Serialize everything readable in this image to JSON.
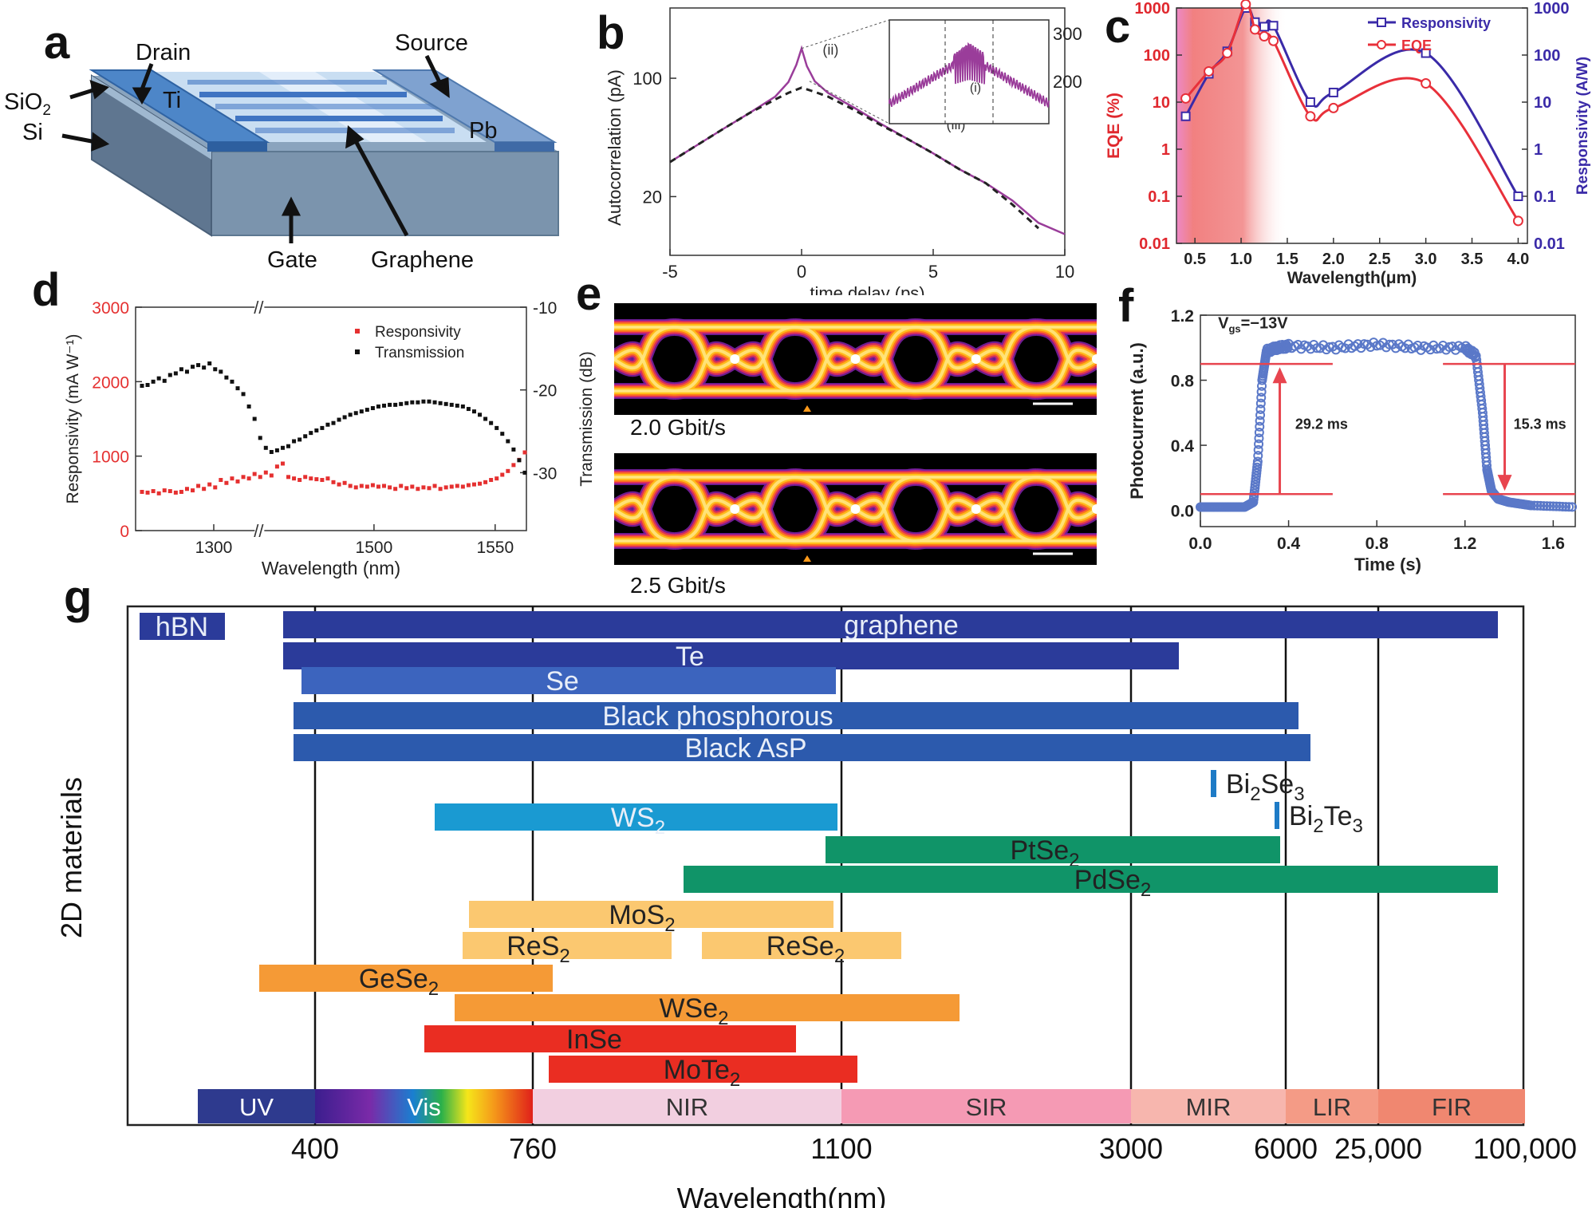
{
  "panel_labels": {
    "a": "a",
    "b": "b",
    "c": "c",
    "d": "d",
    "e": "e",
    "f": "f",
    "g": "g"
  },
  "panel_a": {
    "labels": {
      "drain": "Drain",
      "source": "Source",
      "sio2": "SiO",
      "sio2_sub": "2",
      "si": "Si",
      "ti": "Ti",
      "pb": "Pb",
      "gate": "Gate",
      "graphene": "Graphene"
    },
    "colors": {
      "substrate_top": "#8fa8c0",
      "substrate_front": "#7d95ad",
      "electrode": "#4f86c6",
      "channel": "#bcd6ee",
      "stripe": "#3d74c4"
    }
  },
  "chart_data": [
    {
      "id": "b",
      "type": "line",
      "title": "",
      "xlabel": "time delay (ps)",
      "ylabel": "Autocorrelation (pA)",
      "xlim": [
        -5,
        10
      ],
      "yscale": "log",
      "ylim": [
        9,
        260
      ],
      "xticks": [
        "-5",
        "0",
        "5",
        "10"
      ],
      "yticks": [
        {
          "v": 100,
          "t": "100"
        },
        {
          "v": 20,
          "t": "20"
        }
      ],
      "series": [
        {
          "name": "measured",
          "color": "#9a3d9a",
          "x": [
            -5,
            -4,
            -3,
            -2,
            -1,
            -0.5,
            -0.2,
            0,
            0.2,
            0.5,
            1,
            2,
            3,
            4,
            5,
            6,
            7,
            8,
            9,
            10
          ],
          "y": [
            32,
            40,
            50,
            62,
            78,
            95,
            120,
            150,
            118,
            96,
            82,
            67,
            54,
            44,
            36,
            29,
            24,
            19,
            14,
            12
          ]
        },
        {
          "name": "fit",
          "color": "#222222",
          "dashed": true,
          "x": [
            -5,
            -4,
            -3,
            -2,
            -1,
            -0.5,
            0,
            0.5,
            1,
            2,
            3,
            4,
            5,
            6,
            7,
            8,
            9
          ],
          "y": [
            32,
            40,
            50,
            62,
            75,
            82,
            88,
            83,
            78,
            65,
            53,
            44,
            36,
            29,
            24,
            18,
            13
          ]
        }
      ],
      "annotations": [
        "(ii)",
        "(iii)"
      ],
      "inset": {
        "right_axis_ticks": [
          "300",
          "200"
        ],
        "label": "(i)"
      }
    },
    {
      "id": "c",
      "type": "line",
      "xlabel": "Wavelength(μm)",
      "ylabel_left": "EQE (%)",
      "ylabel_right": "Responsivity (A/W)",
      "xlim": [
        0.3,
        4.1
      ],
      "yscale": "log",
      "ylim_left": [
        0.01,
        1000
      ],
      "ylim_right": [
        0.01,
        1000
      ],
      "xticks": [
        "0.5",
        "1.0",
        "1.5",
        "2.0",
        "2.5",
        "3.0",
        "3.5",
        "4.0"
      ],
      "yticks_left": [
        "0.01",
        "0.1",
        "1",
        "10",
        "100",
        "1000"
      ],
      "yticks_right": [
        "0.01",
        "0.1",
        "1",
        "10",
        "100",
        "1000"
      ],
      "series": [
        {
          "name": "Responsivity",
          "color": "#3a2aa8",
          "marker": "square",
          "x": [
            0.4,
            0.65,
            0.85,
            1.05,
            1.15,
            1.25,
            1.35,
            1.75,
            2.0,
            3.0,
            4.0
          ],
          "y": [
            5,
            40,
            120,
            1000,
            500,
            400,
            420,
            10,
            16,
            110,
            0.1
          ]
        },
        {
          "name": "EQE",
          "color": "#e8303a",
          "marker": "circle",
          "x": [
            0.4,
            0.65,
            0.85,
            1.05,
            1.15,
            1.25,
            1.35,
            1.75,
            2.0,
            3.0,
            4.0
          ],
          "y": [
            12,
            45,
            110,
            1200,
            350,
            250,
            200,
            5,
            7.5,
            25,
            0.03
          ]
        }
      ]
    },
    {
      "id": "d",
      "type": "scatter",
      "xlabel": "Wavelength (nm)",
      "ylabel_left": "Responsivity (mA W⁻¹)",
      "ylabel_right": "Transmission (dB)",
      "xticks": [
        "1300",
        "1500",
        "1550"
      ],
      "yticks_left": [
        "0",
        "1000",
        "2000",
        "3000"
      ],
      "yticks_right": [
        "-10",
        "-20",
        "-30"
      ],
      "ylim_left": [
        0,
        3000
      ],
      "ylim_right": [
        -37,
        -10
      ],
      "series": [
        {
          "name": "Responsivity",
          "color": "#e53030",
          "y": [
            520,
            510,
            530,
            500,
            540,
            530,
            510,
            520,
            560,
            540,
            600,
            560,
            620,
            580,
            680,
            640,
            700,
            660,
            720,
            700,
            760,
            720,
            780,
            740,
            860,
            900,
            720,
            700,
            680,
            720,
            700,
            690,
            680,
            700,
            650,
            620,
            640,
            600,
            580,
            600,
            590,
            610,
            590,
            600,
            580,
            560,
            600,
            570,
            590,
            560,
            580,
            570,
            600,
            560,
            580,
            590,
            600,
            590,
            610,
            620,
            630,
            650,
            680,
            700,
            750,
            800,
            880,
            950,
            1050
          ]
        },
        {
          "name": "Transmission",
          "color": "#111111",
          "y": [
            -19.5,
            -19.4,
            -19.0,
            -18.6,
            -18.9,
            -18.2,
            -18.0,
            -17.5,
            -17.8,
            -17.2,
            -17.0,
            -17.3,
            -16.8,
            -17.5,
            -17.8,
            -18.5,
            -19.0,
            -19.8,
            -20.5,
            -22.0,
            -23.5,
            -25.8,
            -27.0,
            -27.5,
            -27.3,
            -27.0,
            -26.8,
            -26.2,
            -26.0,
            -25.6,
            -25.2,
            -24.9,
            -24.6,
            -24.2,
            -24.0,
            -23.6,
            -23.3,
            -23.0,
            -22.8,
            -22.6,
            -22.4,
            -22.2,
            -22.0,
            -21.9,
            -21.8,
            -21.8,
            -21.7,
            -21.6,
            -21.5,
            -21.5,
            -21.4,
            -21.4,
            -21.5,
            -21.6,
            -21.7,
            -21.8,
            -21.9,
            -22.0,
            -22.3,
            -22.6,
            -23.0,
            -23.5,
            -24.0,
            -24.6,
            -25.3,
            -26.2,
            -27.2,
            -28.5,
            -30.0
          ]
        }
      ],
      "legend": [
        "Responsivity",
        "Transmission"
      ],
      "axis_break": "//"
    },
    {
      "id": "f",
      "type": "line",
      "xlabel": "Time (s)",
      "ylabel": "Photocurrent (a.u.)",
      "xlim": [
        0,
        1.7
      ],
      "ylim": [
        -0.1,
        1.2
      ],
      "xticks": [
        "0.0",
        "0.4",
        "0.8",
        "1.2",
        "1.6"
      ],
      "yticks": [
        "0.0",
        "0.4",
        "0.8",
        "1.2"
      ],
      "annotation_vgs": "V",
      "annotation_vgs_sub": "gs",
      "annotation_vgs_val": "=−13V",
      "rise_label": "29.2 ms",
      "fall_label": "15.3 ms",
      "series": [
        {
          "name": "photocurrent",
          "color": "#5a78c8",
          "x": [
            0,
            0.1,
            0.2,
            0.24,
            0.26,
            0.28,
            0.3,
            0.35,
            0.4,
            0.6,
            0.8,
            1.0,
            1.2,
            1.25,
            1.28,
            1.3,
            1.32,
            1.35,
            1.4,
            1.5,
            1.7
          ],
          "y": [
            0.02,
            0.02,
            0.02,
            0.05,
            0.3,
            0.8,
            0.98,
            1.0,
            1.01,
            1.0,
            1.02,
            1.0,
            1.0,
            0.95,
            0.6,
            0.25,
            0.12,
            0.07,
            0.05,
            0.03,
            0.02
          ]
        }
      ]
    },
    {
      "id": "g",
      "type": "bar",
      "xlabel": "Wavelength(nm)",
      "ylabel": "2D materials",
      "xtick_labels": [
        "400",
        "760",
        "1100",
        "3000",
        "6000",
        "25,000",
        "100,000"
      ],
      "bands": [
        {
          "label": "UV",
          "color": "#2e3a8e"
        },
        {
          "label": "Vis",
          "color": "gradient"
        },
        {
          "label": "NIR",
          "color": "#f2cfe0"
        },
        {
          "label": "SIR",
          "color": "#f59ab4"
        },
        {
          "label": "MIR",
          "color": "#f7b6ae"
        },
        {
          "label": "LIR",
          "color": "#f49b86"
        },
        {
          "label": "FIR",
          "color": "#f08770"
        }
      ],
      "materials": [
        {
          "label": "hBN",
          "color": "#2b3b9a"
        },
        {
          "label": "graphene",
          "color": "#2b3b9a"
        },
        {
          "label": "Te",
          "color": "#2b3b9a"
        },
        {
          "label": "Se",
          "color": "#3c64be"
        },
        {
          "label": "Black phosphorous",
          "color": "#2c5aad"
        },
        {
          "label": "Black AsP",
          "color": "#2c5aad"
        },
        {
          "label": "Bi",
          "sub1": "2",
          "label2": "Se",
          "sub2": "3",
          "color": "#1e7bc6"
        },
        {
          "label": "Bi",
          "sub1": "2",
          "label2": "Te",
          "sub2": "3",
          "color": "#1e7bc6"
        },
        {
          "label": "WS",
          "sub1": "2",
          "color": "#1a9ad2"
        },
        {
          "label": "PtSe",
          "sub1": "2",
          "color": "#109468"
        },
        {
          "label": "PdSe",
          "sub1": "2",
          "color": "#109468"
        },
        {
          "label": "MoS",
          "sub1": "2",
          "color": "#fbc870"
        },
        {
          "label": "ReS",
          "sub1": "2",
          "color": "#fbc870"
        },
        {
          "label": "ReSe",
          "sub1": "2",
          "color": "#fbc870"
        },
        {
          "label": "GeSe",
          "sub1": "2",
          "color": "#f59a36"
        },
        {
          "label": "WSe",
          "sub1": "2",
          "color": "#f59a36"
        },
        {
          "label": "InSe",
          "color": "#ea2d22"
        },
        {
          "label": "MoTe",
          "sub1": "2",
          "color": "#ea2d22"
        }
      ]
    }
  ],
  "panel_e": {
    "top_caption": "2.0 Gbit/s",
    "bottom_caption": "2.5 Gbit/s"
  }
}
